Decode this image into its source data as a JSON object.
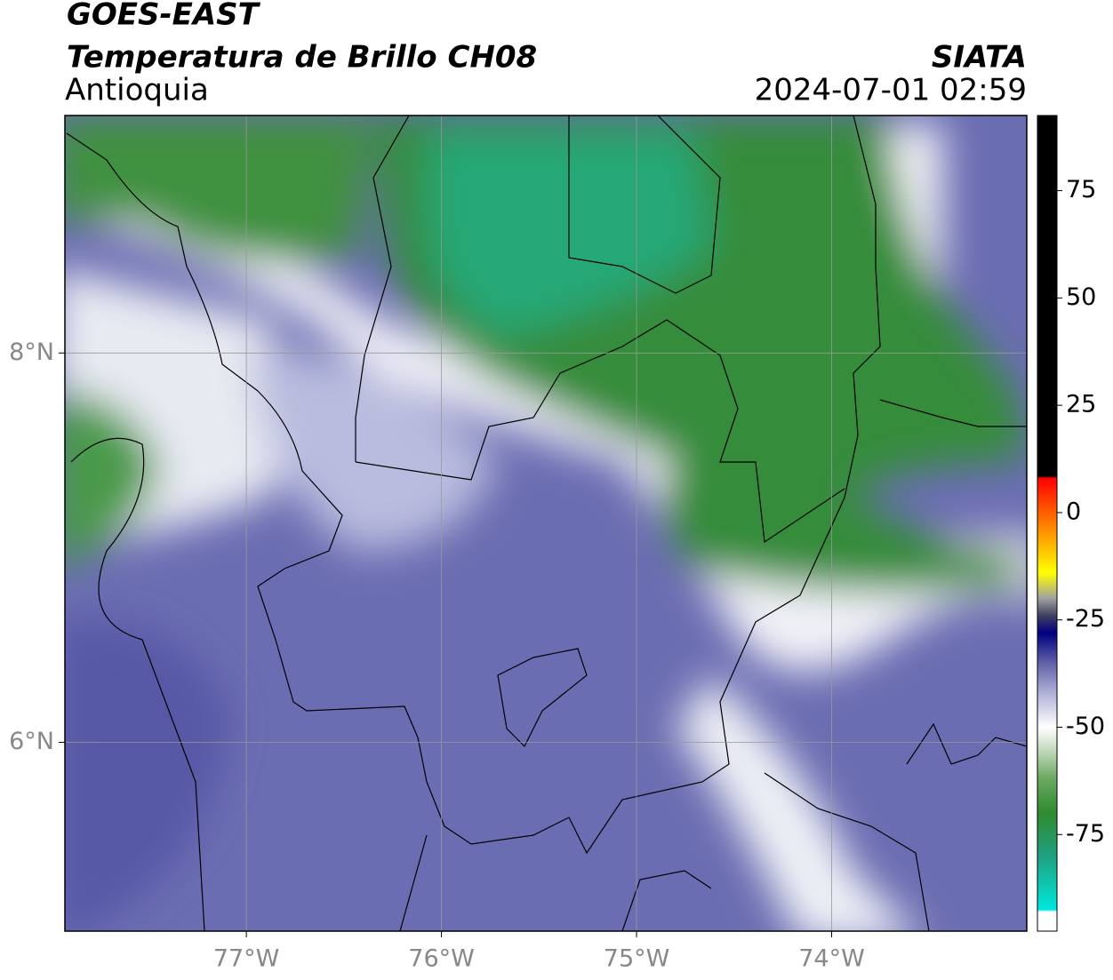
{
  "header": {
    "title": "GOES-EAST",
    "subtitle": "Temperatura de Brillo CH08",
    "region": "Antioquia",
    "source": "SIATA",
    "datetime": "2024-07-01 02:59"
  },
  "map": {
    "xlim": [
      -77.93,
      -73.0
    ],
    "ylim": [
      5.03,
      9.22
    ],
    "grid": true,
    "xticks": [
      {
        "value": -77,
        "label": "77°W"
      },
      {
        "value": -76,
        "label": "76°W"
      },
      {
        "value": -75,
        "label": "75°W"
      },
      {
        "value": -74,
        "label": "74°W"
      }
    ],
    "yticks": [
      {
        "value": 6,
        "label": "6°N"
      },
      {
        "value": 8,
        "label": "8°N"
      }
    ]
  },
  "colorbar": {
    "lim": [
      -97.5,
      92.5
    ],
    "ticks": [
      -75,
      -50,
      -25,
      0,
      25,
      50,
      75
    ],
    "stops": [
      {
        "value": -97.5,
        "color": "#ffffff"
      },
      {
        "value": -93,
        "color": "#ffffff"
      },
      {
        "value": -92.5,
        "color": "#00e8dc"
      },
      {
        "value": -80,
        "color": "#20a080"
      },
      {
        "value": -70,
        "color": "#2e8b30"
      },
      {
        "value": -62,
        "color": "#6aa860"
      },
      {
        "value": -55,
        "color": "#c8dcc0"
      },
      {
        "value": -50,
        "color": "#ffffff"
      },
      {
        "value": -42,
        "color": "#b0b0d8"
      },
      {
        "value": -35,
        "color": "#6060a8"
      },
      {
        "value": -28,
        "color": "#000080"
      },
      {
        "value": -24,
        "color": "#404060"
      },
      {
        "value": -20,
        "color": "#a0a0a0"
      },
      {
        "value": -14,
        "color": "#ffff00"
      },
      {
        "value": -5,
        "color": "#ff9900"
      },
      {
        "value": 8,
        "color": "#ff0000"
      },
      {
        "value": 8.5,
        "color": "#000000"
      },
      {
        "value": 92.5,
        "color": "#000000"
      }
    ]
  }
}
